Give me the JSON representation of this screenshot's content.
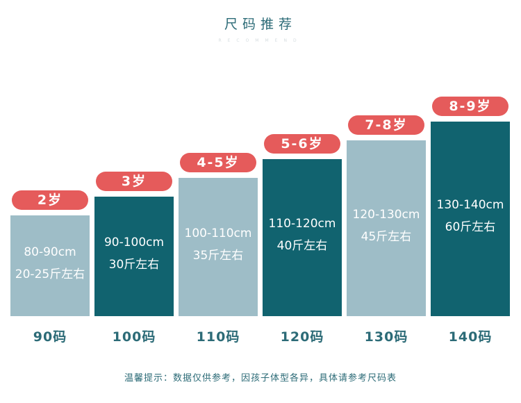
{
  "title": "尺码推荐",
  "subtitle": "RECOMMEND",
  "note": "温馨提示：数据仅供参考，因孩子体型各异，具体请参考尺码表",
  "colors": {
    "light_bar": "#9ebdc7",
    "dark_bar": "#11636f",
    "pill": "#e55b5b",
    "text": "#2c6b77"
  },
  "chart_data": {
    "type": "bar",
    "title": "尺码推荐",
    "categories": [
      "90码",
      "100码",
      "110码",
      "120码",
      "130码",
      "140码"
    ],
    "values": [
      90,
      100,
      110,
      120,
      130,
      140
    ],
    "age_labels": [
      "2岁",
      "3岁",
      "4-5岁",
      "5-6岁",
      "7-8岁",
      "8-9岁"
    ],
    "height_labels": [
      "80-90cm",
      "90-100cm",
      "100-110cm",
      "110-120cm",
      "120-130cm",
      "130-140cm"
    ],
    "weight_labels": [
      "20-25斤左右",
      "30斤左右",
      "35斤左右",
      "40斤左右",
      "45斤左右",
      "60斤左右"
    ],
    "bar_styles": [
      "light",
      "dark",
      "light",
      "dark",
      "light",
      "dark"
    ],
    "ylim": [
      0,
      140
    ],
    "grid": false,
    "legend": "none"
  }
}
